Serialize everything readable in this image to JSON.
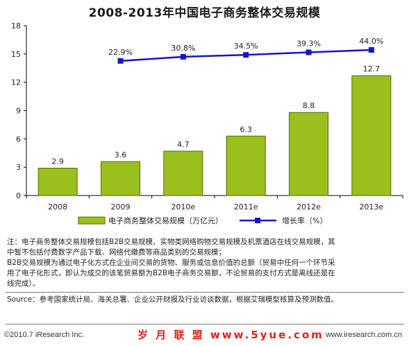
{
  "chart_data": {
    "type": "bar",
    "title": "2008-2013年中国电子商务整体交易规模",
    "categories": [
      "2008",
      "2009",
      "2010e",
      "2011e",
      "2012e",
      "2013e"
    ],
    "series": [
      {
        "name": "电子商务整体交易规模（万亿元）",
        "type": "bar",
        "color": "#9bc01e",
        "values": [
          2.9,
          3.6,
          4.7,
          6.3,
          8.8,
          12.7
        ],
        "labels": [
          "2.9",
          "3.6",
          "4.7",
          "6.3",
          "8.8",
          "12.7"
        ]
      },
      {
        "name": "增长率（%）",
        "type": "line",
        "color": "#1515c8",
        "values": [
          null,
          22.9,
          30.8,
          34.5,
          39.3,
          44.0
        ],
        "labels": [
          "",
          "22.9%",
          "30.8%",
          "34.5%",
          "39.3%",
          "44.0%"
        ]
      }
    ],
    "y_ticks": [
      "0",
      "3",
      "6",
      "9",
      "12",
      "15",
      "18"
    ],
    "ylim": [
      0,
      18
    ],
    "legend_position": "bottom",
    "grid": false
  },
  "note": {
    "line1": "注：电子商务整体交易规模包括B2B交易规模、实物类网络购物交易规模及机票酒店在线交易规模，其",
    "line2": "中暂不包括付费数字产品下载、网络代缴费等商品类别的交易规模；",
    "line3": "B2B交易规模为通过电子化方式在企业间交易的货物、服务或信息价值的总额（贸易中任何一个环节采",
    "line4": "用了电子化形式，即认为成交的该笔贸易额为B2B电子商务交易额，不论贸易的支付方式是离线还是在",
    "line5": "线完成）。"
  },
  "source": "Source：参考国家统计局、海关总署、企业公开财报及行业访谈数据，根据艾瑞模型核算及预测数值。",
  "footer": {
    "left": "©2010.7 iResearch Inc.",
    "middle": "岁 月 联 盟  www.5yue.com",
    "right": "www.iresearch.com.cn"
  },
  "colors": {
    "bar_fill": "#9bc01e",
    "bar_stroke": "#4d6a00",
    "line": "#1515c8"
  }
}
